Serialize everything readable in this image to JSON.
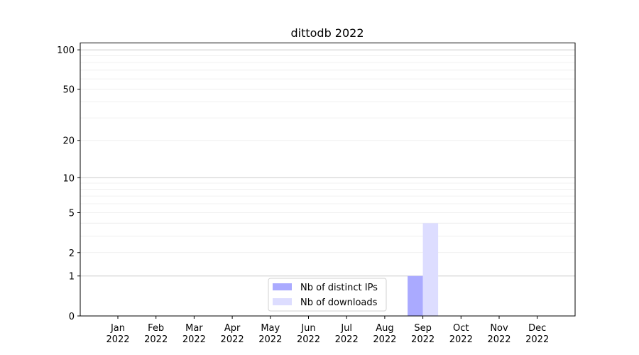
{
  "chart_data": {
    "type": "bar",
    "title": "dittodb 2022",
    "xlabel": "",
    "ylabel": "",
    "categories": [
      "Jan\n2022",
      "Feb\n2022",
      "Mar\n2022",
      "Apr\n2022",
      "May\n2022",
      "Jun\n2022",
      "Jul\n2022",
      "Aug\n2022",
      "Sep\n2022",
      "Oct\n2022",
      "Nov\n2022",
      "Dec\n2022"
    ],
    "series": [
      {
        "name": "Nb of distinct IPs",
        "color": "#aaaaff",
        "values": [
          0,
          0,
          0,
          0,
          0,
          0,
          0,
          0,
          1,
          0,
          0,
          0
        ]
      },
      {
        "name": "Nb of downloads",
        "color": "#ddddff",
        "values": [
          0,
          0,
          0,
          0,
          0,
          0,
          0,
          0,
          4,
          0,
          0,
          0
        ]
      }
    ],
    "yscale": "log(1+y)",
    "ylim": [
      0,
      113
    ],
    "yticks": [
      0,
      1,
      2,
      5,
      10,
      20,
      50,
      100
    ],
    "major_grid": [
      1,
      10,
      100
    ],
    "minor_grid": [
      2,
      3,
      4,
      5,
      6,
      7,
      8,
      9,
      20,
      30,
      40,
      50,
      60,
      70,
      80,
      90
    ],
    "grid": true,
    "legend_position": "lower-center"
  }
}
